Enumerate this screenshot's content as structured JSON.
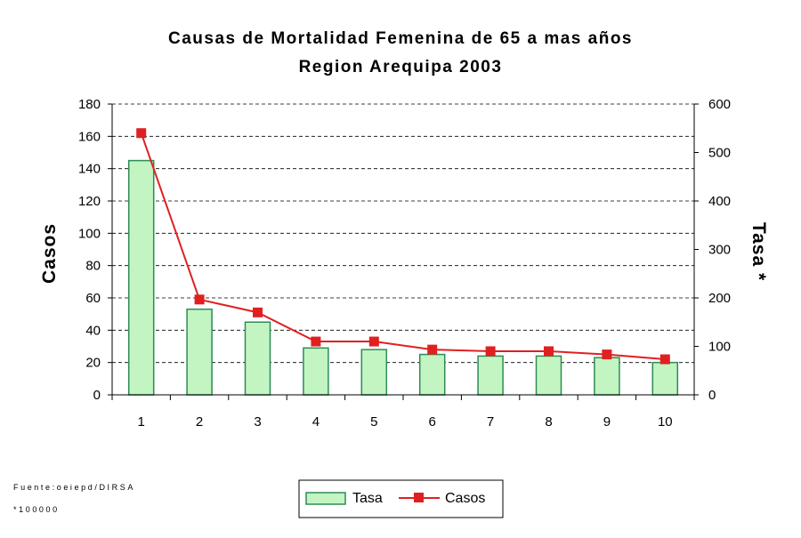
{
  "chart_data": {
    "type": "bar+line",
    "title": "Causas de Mortalidad Femenina de 65 a mas años",
    "subtitle": "Region Arequipa 2003",
    "xlabel": "",
    "ylabel_left": "Casos",
    "ylabel_right": "Tasa *",
    "categories": [
      "1",
      "2",
      "3",
      "4",
      "5",
      "6",
      "7",
      "8",
      "9",
      "10"
    ],
    "y_left": {
      "min": 0,
      "max": 180,
      "ticks": [
        "0",
        "20",
        "40",
        "60",
        "80",
        "100",
        "120",
        "140",
        "160",
        "180"
      ]
    },
    "y_right": {
      "min": 0,
      "max": 600,
      "ticks": [
        "0",
        "100",
        "200",
        "300",
        "400",
        "500",
        "600"
      ]
    },
    "grid": true,
    "series": [
      {
        "name": "Tasa",
        "type": "bar",
        "axis": "left",
        "color": "#c2f5c2",
        "edge_color": "#2e8b57",
        "values": [
          145,
          53,
          45,
          29,
          28,
          25,
          24,
          24,
          23,
          20
        ]
      },
      {
        "name": "Casos",
        "type": "line",
        "axis": "left",
        "color": "#e02020",
        "values": [
          162,
          59,
          51,
          33,
          33,
          28,
          27,
          27,
          25,
          22
        ]
      }
    ],
    "legend_position": "bottom-center",
    "footnotes": [
      "Fuente:oeiepd/DIRSA",
      "*100000"
    ]
  }
}
